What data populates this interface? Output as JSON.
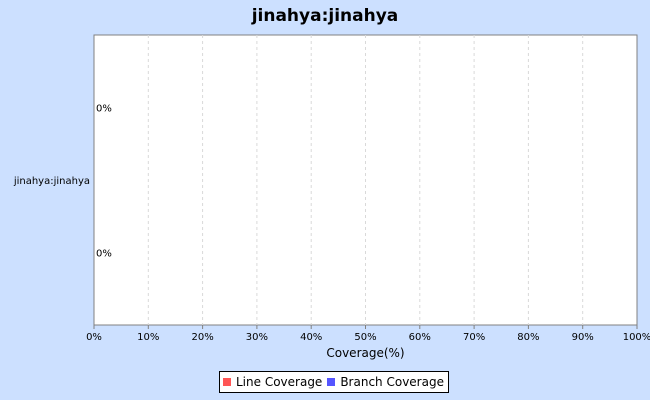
{
  "chart_data": {
    "type": "bar",
    "orientation": "horizontal",
    "title": "jinahya:jinahya",
    "categories": [
      "jinahya:jinahya"
    ],
    "series": [
      {
        "name": "Line Coverage",
        "values": [
          0
        ],
        "color": "#ff5555"
      },
      {
        "name": "Branch Coverage",
        "values": [
          0
        ],
        "color": "#5555ff"
      }
    ],
    "data_labels": [
      "0%",
      "0%"
    ],
    "xlabel": "Coverage(%)",
    "ylabel": "",
    "xlim": [
      0,
      100
    ],
    "x_ticks": [
      "0%",
      "10%",
      "20%",
      "30%",
      "40%",
      "50%",
      "60%",
      "70%",
      "80%",
      "90%",
      "100%"
    ],
    "x_tick_values": [
      0,
      10,
      20,
      30,
      40,
      50,
      60,
      70,
      80,
      90,
      100
    ],
    "grid": "vertical dashed",
    "legend_position": "bottom"
  },
  "colors": {
    "background": "#cce0ff",
    "plot_background": "#ffffff",
    "grid": "#d9d9d9"
  }
}
